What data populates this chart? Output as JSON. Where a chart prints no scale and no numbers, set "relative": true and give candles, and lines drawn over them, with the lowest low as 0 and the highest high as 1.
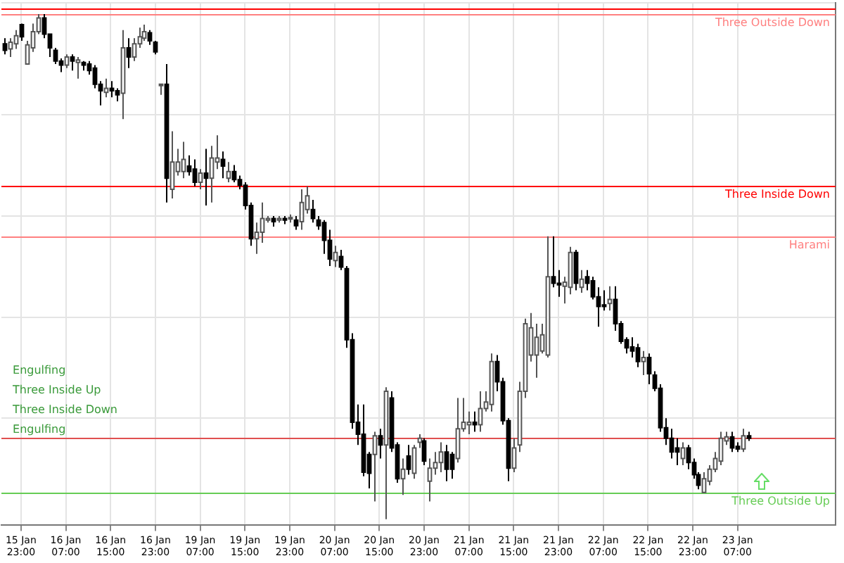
{
  "chart_data": {
    "type": "candlestick",
    "relative": true,
    "grid": true,
    "categories": [
      null,
      null,
      null,
      "15 Jan 23:00",
      null,
      null,
      null,
      null,
      null,
      null,
      null,
      "16 Jan 07:00",
      null,
      null,
      null,
      null,
      null,
      null,
      null,
      "16 Jan 15:00",
      null,
      null,
      null,
      null,
      null,
      null,
      null,
      "16 Jan 23:00",
      null,
      null,
      null,
      null,
      null,
      null,
      null,
      "19 Jan 07:00",
      null,
      null,
      null,
      null,
      null,
      null,
      null,
      "19 Jan 15:00",
      null,
      null,
      null,
      null,
      null,
      null,
      null,
      "19 Jan 23:00",
      null,
      null,
      null,
      null,
      null,
      null,
      null,
      "20 Jan 07:00",
      null,
      null,
      null,
      null,
      null,
      null,
      null,
      "20 Jan 15:00",
      null,
      null,
      null,
      null,
      null,
      null,
      null,
      "20 Jan 23:00",
      null,
      null,
      null,
      null,
      null,
      null,
      null,
      "21 Jan 07:00",
      null,
      null,
      null,
      null,
      null,
      null,
      null,
      "21 Jan 15:00",
      null,
      null,
      null,
      null,
      null,
      null,
      null,
      "21 Jan 23:00",
      null,
      null,
      null,
      null,
      null,
      null,
      null,
      "22 Jan 07:00",
      null,
      null,
      null,
      null,
      null,
      null,
      null,
      "22 Jan 15:00",
      null,
      null,
      null,
      null,
      null,
      null,
      null,
      "22 Jan 23:00",
      null,
      null,
      null,
      null,
      null,
      null,
      null,
      "23 Jan 07:00",
      null,
      null,
      null,
      null,
      null,
      null,
      null,
      null,
      null,
      null,
      null,
      null,
      null,
      null,
      null,
      null,
      null
    ],
    "ohlc": [
      [
        0.941,
        0.952,
        0.92,
        0.928
      ],
      [
        0.931,
        0.952,
        0.915,
        0.944
      ],
      [
        0.941,
        0.968,
        0.931,
        0.957
      ],
      [
        0.979,
        0.981,
        0.947,
        0.955
      ],
      [
        0.901,
        0.947,
        0.901,
        0.939
      ],
      [
        0.933,
        0.981,
        0.925,
        0.965
      ],
      [
        0.965,
        1,
        0.96,
        0.992
      ],
      [
        0.992,
        1,
        0.952,
        0.96
      ],
      [
        0.96,
        0.96,
        0.915,
        0.933
      ],
      [
        0.928,
        0.933,
        0.901,
        0.907
      ],
      [
        0.907,
        0.912,
        0.885,
        0.899
      ],
      [
        0.899,
        0.92,
        0.893,
        0.915
      ],
      [
        0.915,
        0.92,
        0.888,
        0.907
      ],
      [
        0.904,
        0.915,
        0.872,
        0.909
      ],
      [
        0.904,
        0.907,
        0.888,
        0.899
      ],
      [
        0.901,
        0.907,
        0.88,
        0.888
      ],
      [
        0.893,
        0.899,
        0.853,
        0.861
      ],
      [
        0.861,
        0.867,
        0.819,
        0.848
      ],
      [
        0.845,
        0.872,
        0.835,
        0.853
      ],
      [
        0.853,
        0.867,
        0.835,
        0.848
      ],
      [
        0.848,
        0.853,
        0.827,
        0.84
      ],
      [
        0.843,
        0.968,
        0.792,
        0.933
      ],
      [
        0.933,
        0.952,
        0.893,
        0.915
      ],
      [
        0.915,
        0.952,
        0.907,
        0.941
      ],
      [
        0.941,
        0.973,
        0.933,
        0.955
      ],
      [
        0.952,
        0.979,
        0.947,
        0.965
      ],
      [
        0.963,
        0.968,
        0.939,
        0.947
      ],
      [
        0.944,
        0.947,
        0.92,
        0.925
      ],
      [
        0.859,
        0.861,
        0.84,
        0.861
      ],
      [
        0.861,
        0.901,
        0.627,
        0.675
      ],
      [
        0.653,
        0.768,
        0.635,
        0.707
      ],
      [
        0.688,
        0.733,
        0.68,
        0.707
      ],
      [
        0.688,
        0.747,
        0.675,
        0.712
      ],
      [
        0.699,
        0.72,
        0.68,
        0.688
      ],
      [
        0.693,
        0.712,
        0.659,
        0.667
      ],
      [
        0.667,
        0.693,
        0.653,
        0.685
      ],
      [
        0.685,
        0.733,
        0.621,
        0.675
      ],
      [
        0.675,
        0.739,
        0.627,
        0.715
      ],
      [
        0.707,
        0.76,
        0.693,
        0.715
      ],
      [
        0.712,
        0.728,
        0.675,
        0.699
      ],
      [
        0.675,
        0.707,
        0.667,
        0.688
      ],
      [
        0.688,
        0.701,
        0.667,
        0.672
      ],
      [
        0.672,
        0.68,
        0.653,
        0.661
      ],
      [
        0.661,
        0.667,
        0.613,
        0.621
      ],
      [
        0.621,
        0.627,
        0.541,
        0.555
      ],
      [
        0.555,
        0.587,
        0.525,
        0.568
      ],
      [
        0.568,
        0.627,
        0.547,
        0.595
      ],
      [
        0.592,
        0.6,
        0.587,
        0.595
      ],
      [
        0.595,
        0.6,
        0.579,
        0.589
      ],
      [
        0.592,
        0.6,
        0.587,
        0.595
      ],
      [
        0.595,
        0.6,
        0.584,
        0.592
      ],
      [
        0.595,
        0.603,
        0.587,
        0.597
      ],
      [
        0.592,
        0.6,
        0.573,
        0.581
      ],
      [
        0.589,
        0.653,
        0.573,
        0.627
      ],
      [
        0.613,
        0.659,
        0.605,
        0.64
      ],
      [
        0.613,
        0.632,
        0.587,
        0.595
      ],
      [
        0.592,
        0.6,
        0.573,
        0.581
      ],
      [
        0.587,
        0.592,
        0.525,
        0.552
      ],
      [
        0.552,
        0.573,
        0.501,
        0.515
      ],
      [
        0.512,
        0.541,
        0.499,
        0.528
      ],
      [
        0.52,
        0.533,
        0.493,
        0.499
      ],
      [
        0.496,
        0.501,
        0.339,
        0.355
      ],
      [
        0.355,
        0.368,
        0.179,
        0.192
      ],
      [
        0.192,
        0.227,
        0.147,
        0.168
      ],
      [
        0.168,
        0.227,
        0.085,
        0.093
      ],
      [
        0.128,
        0.133,
        0.061,
        0.091
      ],
      [
        0.128,
        0.173,
        0.035,
        0.165
      ],
      [
        0.165,
        0.179,
        0.12,
        0.147
      ],
      [
        0.147,
        0.261,
        0,
        0.253
      ],
      [
        0.24,
        0.253,
        0.133,
        0.141
      ],
      [
        0.147,
        0.152,
        0.072,
        0.08
      ],
      [
        0.08,
        0.12,
        0.048,
        0.099
      ],
      [
        0.125,
        0.147,
        0.088,
        0.099
      ],
      [
        0.091,
        0.147,
        0.08,
        0.141
      ],
      [
        0.152,
        0.168,
        0.141,
        0.16
      ],
      [
        0.155,
        0.16,
        0.107,
        0.115
      ],
      [
        0.075,
        0.12,
        0.035,
        0.101
      ],
      [
        0.101,
        0.133,
        0.088,
        0.112
      ],
      [
        0.112,
        0.152,
        0.093,
        0.133
      ],
      [
        0.133,
        0.147,
        0.075,
        0.099
      ],
      [
        0.128,
        0.133,
        0.08,
        0.099
      ],
      [
        0.12,
        0.24,
        0.112,
        0.179
      ],
      [
        0.179,
        0.24,
        0.173,
        0.192
      ],
      [
        0.187,
        0.213,
        0.168,
        0.192
      ],
      [
        0.192,
        0.213,
        0.173,
        0.187
      ],
      [
        0.187,
        0.253,
        0.173,
        0.219
      ],
      [
        0.219,
        0.253,
        0.213,
        0.232
      ],
      [
        0.227,
        0.328,
        0.213,
        0.312
      ],
      [
        0.312,
        0.325,
        0.253,
        0.272
      ],
      [
        0.272,
        0.28,
        0.187,
        0.195
      ],
      [
        0.195,
        0.2,
        0.075,
        0.101
      ],
      [
        0.101,
        0.16,
        0.093,
        0.141
      ],
      [
        0.147,
        0.272,
        0.133,
        0.253
      ],
      [
        0.253,
        0.397,
        0.24,
        0.387
      ],
      [
        0.325,
        0.408,
        0.312,
        0.379
      ],
      [
        0.325,
        0.387,
        0.28,
        0.36
      ],
      [
        0.333,
        0.387,
        0.328,
        0.365
      ],
      [
        0.325,
        0.56,
        0.32,
        0.48
      ],
      [
        0.48,
        0.56,
        0.459,
        0.467
      ],
      [
        0.467,
        0.493,
        0.44,
        0.464
      ],
      [
        0.461,
        0.48,
        0.427,
        0.469
      ],
      [
        0.459,
        0.539,
        0.445,
        0.528
      ],
      [
        0.528,
        0.533,
        0.453,
        0.467
      ],
      [
        0.459,
        0.493,
        0.448,
        0.475
      ],
      [
        0.48,
        0.493,
        0.453,
        0.467
      ],
      [
        0.472,
        0.48,
        0.435,
        0.44
      ],
      [
        0.44,
        0.459,
        0.381,
        0.421
      ],
      [
        0.424,
        0.453,
        0.413,
        0.421
      ],
      [
        0.427,
        0.461,
        0.413,
        0.435
      ],
      [
        0.435,
        0.461,
        0.373,
        0.387
      ],
      [
        0.387,
        0.392,
        0.347,
        0.352
      ],
      [
        0.355,
        0.36,
        0.328,
        0.339
      ],
      [
        0.341,
        0.36,
        0.32,
        0.333
      ],
      [
        0.339,
        0.347,
        0.301,
        0.312
      ],
      [
        0.312,
        0.333,
        0.285,
        0.32
      ],
      [
        0.32,
        0.328,
        0.267,
        0.288
      ],
      [
        0.285,
        0.293,
        0.253,
        0.259
      ],
      [
        0.259,
        0.267,
        0.173,
        0.181
      ],
      [
        0.181,
        0.2,
        0.147,
        0.16
      ],
      [
        0.16,
        0.179,
        0.12,
        0.133
      ],
      [
        0.141,
        0.16,
        0.107,
        0.133
      ],
      [
        0.12,
        0.152,
        0.107,
        0.141
      ],
      [
        0.141,
        0.147,
        0.099,
        0.112
      ],
      [
        0.112,
        0.12,
        0.08,
        0.088
      ],
      [
        0.088,
        0.093,
        0.059,
        0.067
      ],
      [
        0.053,
        0.093,
        0.053,
        0.08
      ],
      [
        0.075,
        0.107,
        0.067,
        0.099
      ],
      [
        0.099,
        0.133,
        0.093,
        0.12
      ],
      [
        0.115,
        0.173,
        0.107,
        0.16
      ],
      [
        0.155,
        0.173,
        0.147,
        0.163
      ],
      [
        0.163,
        0.173,
        0.133,
        0.141
      ],
      [
        0.144,
        0.152,
        0.133,
        0.139
      ],
      [
        0.139,
        0.179,
        0.133,
        0.165
      ],
      [
        0.165,
        0.173,
        0.155,
        0.16
      ],
      null,
      null,
      null,
      null,
      null,
      null,
      null,
      null,
      null,
      null,
      null,
      null,
      null,
      null,
      null
    ],
    "ref_lines": [
      {
        "axis": "y",
        "value": 1.01,
        "color": "#ff0000"
      },
      {
        "axis": "y",
        "value": 1.0,
        "color": "#ff8080",
        "label": "Three Outside Down"
      },
      {
        "axis": "y",
        "value": 0.659,
        "color": "#ff0000",
        "label": "Three Inside Down"
      },
      {
        "axis": "y",
        "value": 0.56,
        "color": "#ff8080",
        "label": "Harami"
      },
      {
        "axis": "y",
        "value": 0.16,
        "color": "#e05050"
      },
      {
        "axis": "y",
        "value": 0.053,
        "color": "#66cc55",
        "label": "Three Outside Up"
      }
    ],
    "annotations": [
      "Engulfing",
      "Three Inside Up",
      "Three Inside Down",
      "Engulfing"
    ]
  }
}
